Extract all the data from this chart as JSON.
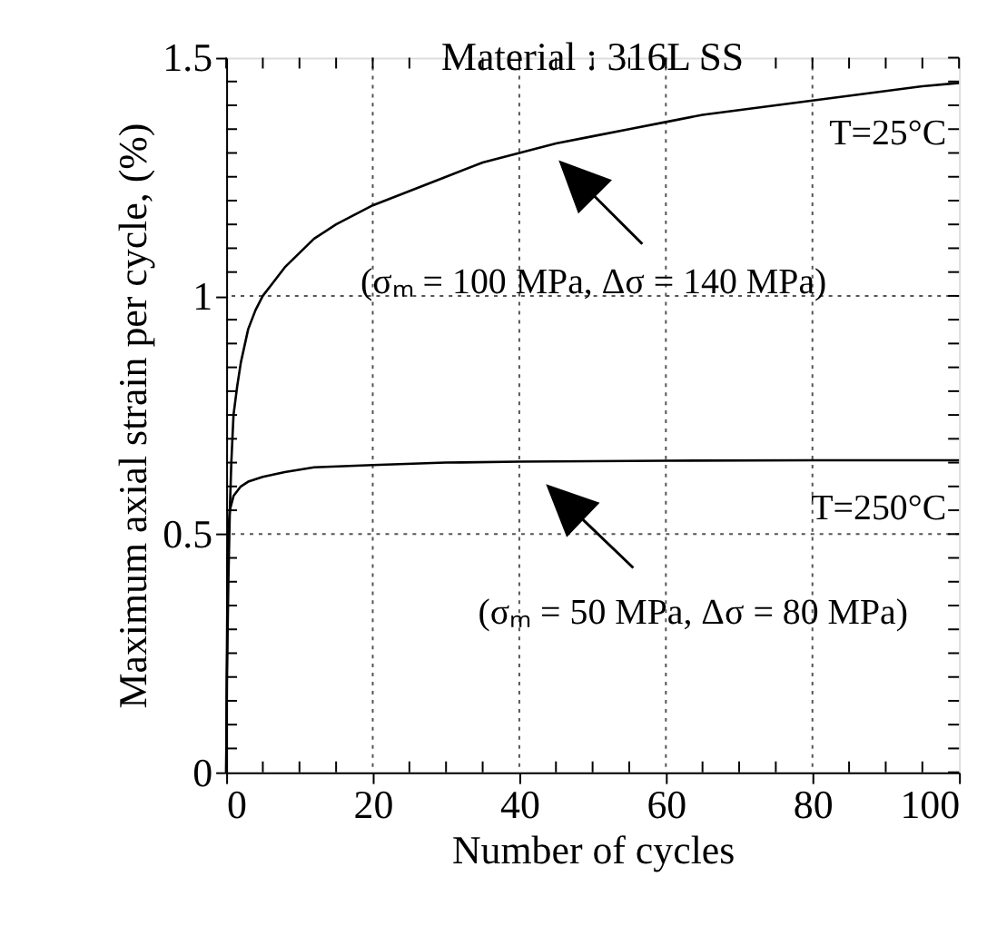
{
  "chart_data": {
    "type": "line",
    "title": "Material : 316L SS",
    "xlabel": "Number of cycles",
    "ylabel": "Maximum axial strain per cycle, (%)",
    "series": [
      {
        "color": "#000000",
        "x": [
          0,
          0.1,
          0.3,
          0.5,
          0.7,
          1,
          1.5,
          2,
          3,
          4,
          5,
          6.5,
          8,
          10,
          12,
          15,
          20,
          25,
          30,
          35,
          40,
          45,
          50,
          55,
          60,
          65,
          70,
          75,
          80,
          85,
          90,
          95,
          100
        ],
        "values": [
          0,
          0.2,
          0.4,
          0.55,
          0.65,
          0.75,
          0.81,
          0.86,
          0.93,
          0.97,
          1.0,
          1.03,
          1.06,
          1.09,
          1.12,
          1.15,
          1.19,
          1.22,
          1.25,
          1.28,
          1.3,
          1.32,
          1.335,
          1.35,
          1.365,
          1.38,
          1.39,
          1.4,
          1.41,
          1.42,
          1.43,
          1.44,
          1.447
        ]
      },
      {
        "color": "#000000",
        "x": [
          0,
          0.1,
          0.2,
          0.35,
          0.5,
          1,
          2,
          3,
          5,
          8,
          12,
          20,
          30,
          40,
          60,
          80,
          100
        ],
        "values": [
          0,
          0.25,
          0.45,
          0.52,
          0.55,
          0.58,
          0.6,
          0.61,
          0.62,
          0.63,
          0.64,
          0.645,
          0.65,
          0.652,
          0.654,
          0.655,
          0.655
        ]
      }
    ],
    "annotations": [
      "T=25°C",
      "(σₘ = 100 MPa, Δσ = 140 MPa)",
      "T=250°C",
      "(σₘ = 50 MPa, Δσ = 80 MPa)"
    ],
    "ref_lines": [
      {
        "axis": "y",
        "value": 1,
        "label": null,
        "line_style": "dotted"
      },
      {
        "axis": "y",
        "value": 0.5,
        "label": null,
        "line_style": "dotted"
      }
    ],
    "xlim": [
      0,
      100
    ],
    "ylim": [
      0,
      1.5
    ],
    "xticks": [
      0,
      {
        "value": 5,
        "label": null
      },
      {
        "value": 10,
        "label": null
      },
      {
        "value": 15,
        "label": null
      },
      20,
      {
        "value": 25,
        "label": null
      },
      {
        "value": 30,
        "label": null
      },
      {
        "value": 35,
        "label": null
      },
      40,
      {
        "value": 45,
        "label": null
      },
      {
        "value": 50,
        "label": null
      },
      {
        "value": 55,
        "label": null
      },
      60,
      {
        "value": 65,
        "label": null
      },
      {
        "value": 70,
        "label": null
      },
      {
        "value": 75,
        "label": null
      },
      80,
      {
        "value": 85,
        "label": null
      },
      {
        "value": 90,
        "label": null
      },
      {
        "value": 95,
        "label": null
      },
      100
    ],
    "yticks": [
      0,
      {
        "value": 0.05,
        "label": null
      },
      {
        "value": 0.1,
        "label": null
      },
      {
        "value": 0.15,
        "label": null
      },
      {
        "value": 0.2,
        "label": null
      },
      {
        "value": 0.25,
        "label": null
      },
      {
        "value": 0.3,
        "label": null
      },
      {
        "value": 0.35,
        "label": null
      },
      {
        "value": 0.4,
        "label": null
      },
      {
        "value": 0.45,
        "label": null
      },
      0.5,
      {
        "value": 0.55,
        "label": null
      },
      {
        "value": 0.6,
        "label": null
      },
      {
        "value": 0.65,
        "label": null
      },
      {
        "value": 0.7,
        "label": null
      },
      {
        "value": 0.75,
        "label": null
      },
      {
        "value": 0.8,
        "label": null
      },
      {
        "value": 0.85,
        "label": null
      },
      {
        "value": 0.9,
        "label": null
      },
      {
        "value": 0.95,
        "label": null
      },
      1,
      {
        "value": 1.05,
        "label": null
      },
      {
        "value": 1.1,
        "label": null
      },
      {
        "value": 1.15,
        "label": null
      },
      {
        "value": 1.2,
        "label": null
      },
      {
        "value": 1.25,
        "label": null
      },
      {
        "value": 1.3,
        "label": null
      },
      {
        "value": 1.35,
        "label": null
      },
      {
        "value": 1.4,
        "label": null
      },
      {
        "value": 1.45,
        "label": null
      },
      1.5
    ],
    "grid": "x",
    "marker": "none",
    "line_style": "solid"
  }
}
